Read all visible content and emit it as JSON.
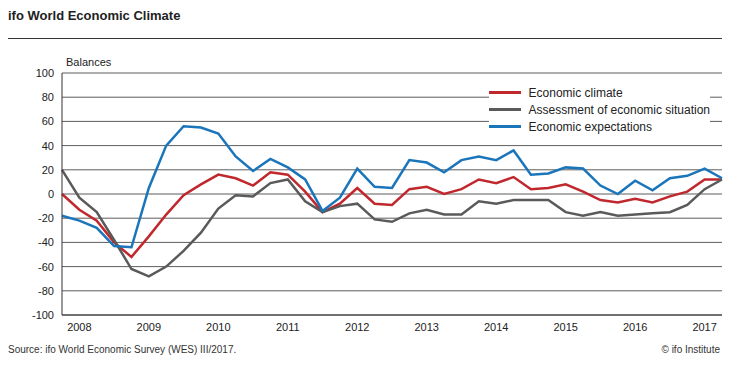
{
  "chart_data": {
    "type": "line",
    "title": "ifo World Economic Climate",
    "y_label": "Balances",
    "annotations": [
      "Source: ifo World Economic Survey (WES) III/2017.",
      "© ifo Institute"
    ],
    "categories": [
      null,
      "2008",
      null,
      null,
      null,
      "2009",
      null,
      null,
      null,
      "2010",
      null,
      null,
      null,
      "2011",
      null,
      null,
      null,
      "2012",
      null,
      null,
      null,
      "2013",
      null,
      null,
      null,
      "2014",
      null,
      null,
      null,
      "2015",
      null,
      null,
      null,
      "2016",
      null,
      null,
      null,
      "2017",
      null
    ],
    "series": [
      {
        "name": "Economic climate",
        "color": "#c0282d",
        "values": [
          0,
          -13,
          -22,
          -40,
          -52,
          -35,
          -17,
          -1,
          8,
          16,
          13,
          7,
          18,
          16,
          2,
          -15,
          -8,
          5,
          -8,
          -9,
          4,
          6,
          0,
          4,
          12,
          9,
          14,
          4,
          5,
          8,
          2,
          -5,
          -7,
          -4,
          -7,
          -2,
          2,
          12,
          12
        ]
      },
      {
        "name": "Assessment of economic situation",
        "color": "#5a5a5a",
        "values": [
          20,
          -3,
          -15,
          -38,
          -62,
          -68,
          -60,
          -47,
          -32,
          -12,
          -1,
          -2,
          9,
          12,
          -6,
          -15,
          -10,
          -8,
          -21,
          -23,
          -16,
          -13,
          -17,
          -17,
          -6,
          -8,
          -5,
          -5,
          -5,
          -15,
          -18,
          -15,
          -18,
          -17,
          -16,
          -15,
          -9,
          4,
          12
        ]
      },
      {
        "name": "Economic expectations",
        "color": "#1a75bb",
        "values": [
          -18,
          -22,
          -28,
          -43,
          -44,
          5,
          40,
          56,
          55,
          50,
          31,
          19,
          29,
          22,
          12,
          -14,
          -3,
          21,
          6,
          5,
          28,
          26,
          18,
          28,
          31,
          28,
          36,
          16,
          17,
          22,
          21,
          7,
          0,
          11,
          3,
          13,
          15,
          21,
          13
        ]
      }
    ],
    "ylim": [
      -100,
      100
    ],
    "yticks": [
      -100,
      -80,
      -60,
      -40,
      -20,
      0,
      20,
      40,
      60,
      80,
      100
    ],
    "grid": true,
    "legend": "top-right"
  }
}
